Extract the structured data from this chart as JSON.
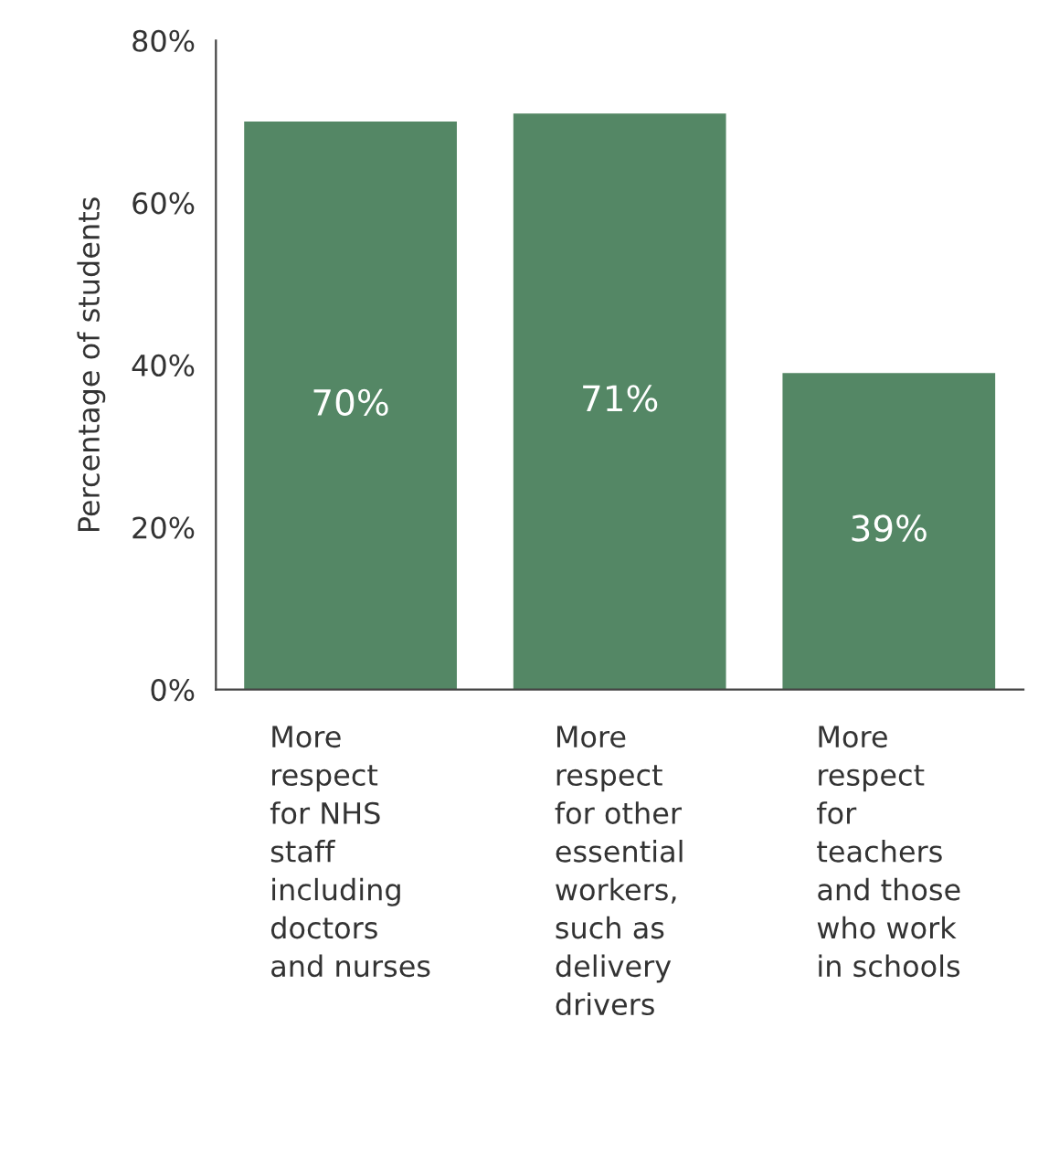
{
  "chart_data": {
    "type": "bar",
    "ylabel": "Percentage of students",
    "categories": [
      "More\nrespect\nfor NHS\nstaff\nincluding\ndoctors\nand nurses",
      "More\nrespect\nfor other\nessential\nworkers,\nsuch as\ndelivery\ndrivers",
      "More\nrespect\nfor\nteachers\nand those\nwho work\nin schools"
    ],
    "values": [
      70,
      71,
      39
    ],
    "value_labels": [
      "70%",
      "71%",
      "39%"
    ],
    "color": "#548765",
    "ylim": [
      0,
      80
    ],
    "yticks": [
      {
        "value": 0,
        "label": "0%"
      },
      {
        "value": 20,
        "label": "20%"
      },
      {
        "value": 40,
        "label": "40%"
      },
      {
        "value": 60,
        "label": "60%"
      },
      {
        "value": 80,
        "label": "80%"
      }
    ],
    "grid": false,
    "legend": false
  }
}
